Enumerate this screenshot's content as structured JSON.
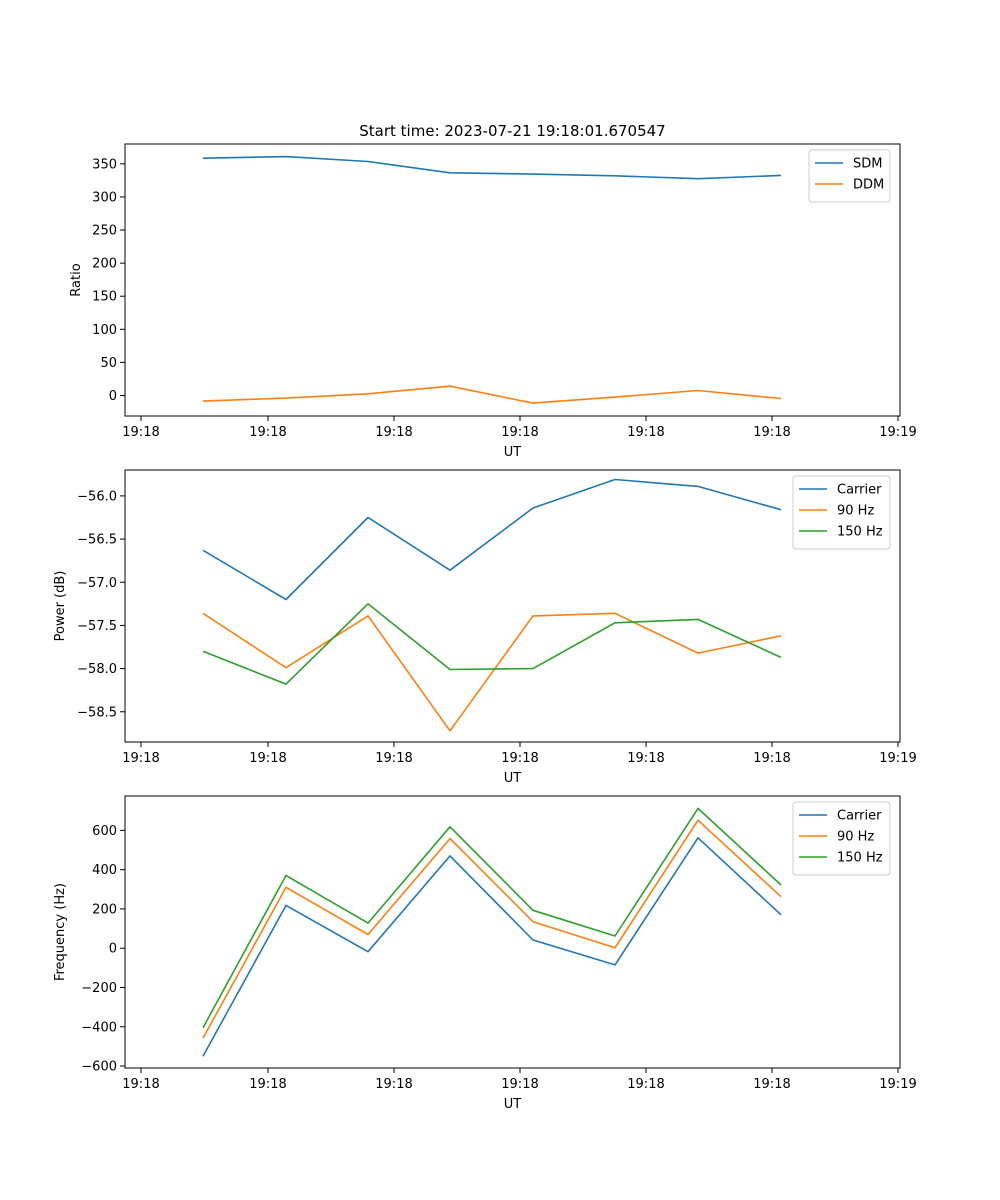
{
  "figure": {
    "title": "Start time: 2023-07-21 19:18:01.670547"
  },
  "chart_data": [
    {
      "type": "line",
      "xlabel": "UT",
      "ylabel": "Ratio",
      "xtick_labels": [
        "19:18",
        "19:18",
        "19:18",
        "19:18",
        "19:18",
        "19:18",
        "19:19"
      ],
      "yticks": [
        0,
        50,
        100,
        150,
        200,
        250,
        300,
        350
      ],
      "ylim": [
        -31,
        380
      ],
      "legend_position": "upper right",
      "series": [
        {
          "name": "SDM",
          "color": "#1f77b4",
          "values": [
            358.5,
            361.0,
            353.5,
            336.5,
            334.5,
            332.0,
            327.5,
            332.5
          ]
        },
        {
          "name": "DDM",
          "color": "#ff7f0e",
          "values": [
            -8.5,
            -4.0,
            2.5,
            14.0,
            -11.5,
            -2.5,
            7.5,
            -4.5
          ]
        }
      ]
    },
    {
      "type": "line",
      "xlabel": "UT",
      "ylabel": "Power (dB)",
      "xtick_labels": [
        "19:18",
        "19:18",
        "19:18",
        "19:18",
        "19:18",
        "19:18",
        "19:19"
      ],
      "yticks": [
        -58.5,
        -58.0,
        -57.5,
        -57.0,
        -56.5,
        -56.0
      ],
      "ytick_labels": [
        "−58.5",
        "−58.0",
        "−57.5",
        "−57.0",
        "−56.5",
        "−56.0"
      ],
      "ylim": [
        -58.85,
        -55.7
      ],
      "legend_position": "upper right",
      "series": [
        {
          "name": "Carrier",
          "color": "#1f77b4",
          "values": [
            -56.63,
            -57.2,
            -56.25,
            -56.86,
            -56.14,
            -55.81,
            -55.89,
            -56.16
          ]
        },
        {
          "name": "90 Hz",
          "color": "#ff7f0e",
          "values": [
            -57.36,
            -57.99,
            -57.39,
            -58.72,
            -57.39,
            -57.36,
            -57.82,
            -57.62
          ]
        },
        {
          "name": "150 Hz",
          "color": "#2ca02c",
          "values": [
            -57.8,
            -58.18,
            -57.25,
            -58.01,
            -58.0,
            -57.47,
            -57.43,
            -57.87
          ]
        }
      ]
    },
    {
      "type": "line",
      "xlabel": "UT",
      "ylabel": "Frequency (Hz)",
      "xtick_labels": [
        "19:18",
        "19:18",
        "19:18",
        "19:18",
        "19:18",
        "19:18",
        "19:19"
      ],
      "yticks": [
        -600,
        -400,
        -200,
        0,
        200,
        400,
        600
      ],
      "ytick_labels": [
        "−600",
        "−400",
        "−200",
        "0",
        "200",
        "400",
        "600"
      ],
      "ylim": [
        -610,
        775
      ],
      "legend_position": "upper right",
      "series": [
        {
          "name": "Carrier",
          "color": "#1f77b4",
          "values": [
            -550,
            218,
            -18,
            470,
            42,
            -85,
            562,
            170
          ]
        },
        {
          "name": "90 Hz",
          "color": "#ff7f0e",
          "values": [
            -458,
            310,
            70,
            558,
            135,
            2,
            652,
            262
          ]
        },
        {
          "name": "150 Hz",
          "color": "#2ca02c",
          "values": [
            -405,
            370,
            128,
            618,
            193,
            62,
            712,
            322
          ]
        }
      ]
    }
  ]
}
